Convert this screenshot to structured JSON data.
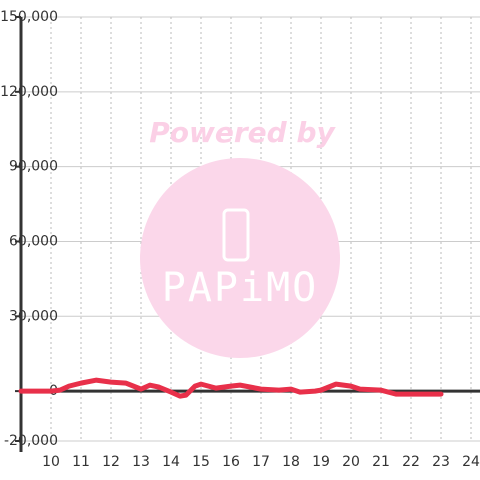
{
  "chart_data": {
    "type": "line",
    "x": [
      9,
      10,
      10.3,
      10.6,
      11,
      11.5,
      12,
      12.5,
      13,
      13.3,
      13.6,
      14,
      14.3,
      14.5,
      14.8,
      15,
      15.5,
      16,
      16.3,
      17,
      17.6,
      18,
      18.3,
      18.8,
      19,
      19.5,
      20,
      20.3,
      21,
      21.5,
      22,
      23
    ],
    "series": [
      {
        "color": "#e8304a",
        "values": [
          0,
          0,
          400,
          2000,
          3200,
          4400,
          3600,
          3200,
          800,
          2400,
          1600,
          -400,
          -2000,
          -1600,
          2000,
          2800,
          1200,
          2000,
          2400,
          800,
          400,
          800,
          -400,
          0,
          400,
          2800,
          2000,
          800,
          400,
          -1200,
          -1200,
          -1200
        ]
      }
    ],
    "xlim": [
      9,
      24.3
    ],
    "ylim": [
      -20000,
      150000
    ],
    "xticks": [
      10,
      11,
      12,
      13,
      14,
      15,
      16,
      17,
      18,
      19,
      20,
      21,
      22,
      23,
      24
    ],
    "yticks": [
      {
        "value": -20000,
        "label": "-20,000"
      },
      0,
      {
        "value": 30000,
        "label": "30,000"
      },
      {
        "value": 60000,
        "label": "60,000"
      },
      {
        "value": 90000,
        "label": "90,000"
      },
      {
        "value": 120000,
        "label": "120,000"
      },
      {
        "value": 150000,
        "label": "150,000"
      }
    ],
    "grid": true,
    "watermark": {
      "top": "Powered by",
      "brand": "PAPiMO"
    }
  }
}
